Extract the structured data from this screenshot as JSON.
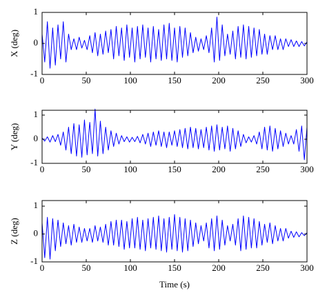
{
  "chart_data": [
    {
      "type": "line",
      "ylabel": "X (deg)",
      "x": [
        0,
        3,
        6,
        9,
        12,
        15,
        18,
        21,
        24,
        27,
        30,
        33,
        36,
        39,
        42,
        45,
        48,
        51,
        54,
        57,
        60,
        63,
        66,
        69,
        72,
        75,
        78,
        81,
        84,
        87,
        90,
        93,
        96,
        99,
        102,
        105,
        108,
        111,
        114,
        117,
        120,
        123,
        126,
        129,
        132,
        135,
        138,
        141,
        144,
        147,
        150,
        153,
        156,
        159,
        162,
        165,
        168,
        171,
        174,
        177,
        180,
        183,
        186,
        189,
        192,
        195,
        198,
        201,
        204,
        207,
        210,
        213,
        216,
        219,
        222,
        225,
        228,
        231,
        234,
        237,
        240,
        243,
        246,
        249,
        252,
        255,
        258,
        261,
        264,
        267,
        270,
        273,
        276,
        279,
        282,
        285,
        288,
        291,
        294,
        297,
        300
      ],
      "series": [
        {
          "name": "X",
          "color": "#0000ff",
          "values": [
            0.3,
            -0.6,
            0.7,
            -0.8,
            0.5,
            -0.7,
            0.6,
            -0.5,
            0.7,
            -0.6,
            0.3,
            -0.2,
            0.15,
            -0.2,
            0.2,
            -0.15,
            0.1,
            -0.2,
            0.25,
            -0.3,
            0.35,
            -0.4,
            0.3,
            -0.35,
            0.4,
            -0.3,
            0.45,
            -0.5,
            0.55,
            -0.4,
            0.5,
            -0.55,
            0.6,
            -0.45,
            0.5,
            -0.6,
            0.55,
            -0.5,
            0.6,
            -0.45,
            0.5,
            -0.6,
            0.55,
            -0.5,
            0.45,
            -0.55,
            0.6,
            -0.5,
            0.65,
            -0.55,
            0.5,
            -0.6,
            0.55,
            -0.45,
            0.5,
            -0.4,
            0.35,
            -0.3,
            0.2,
            -0.25,
            0.15,
            -0.2,
            0.25,
            -0.3,
            0.5,
            -0.6,
            0.85,
            -0.55,
            0.6,
            -0.4,
            0.3,
            -0.35,
            0.4,
            -0.5,
            0.55,
            -0.45,
            0.6,
            -0.5,
            0.55,
            -0.45,
            0.5,
            -0.4,
            0.45,
            -0.35,
            0.3,
            -0.35,
            0.25,
            -0.2,
            0.25,
            -0.2,
            0.15,
            -0.2,
            0.15,
            -0.1,
            0.12,
            -0.1,
            0.08,
            -0.1,
            0.06,
            -0.08,
            0.05
          ]
        }
      ],
      "xlim": [
        0,
        300
      ],
      "xticks": [
        0,
        50,
        100,
        150,
        200,
        250,
        300
      ],
      "ylim": [
        -1,
        1
      ],
      "yticks": [
        -1,
        0,
        1
      ]
    },
    {
      "type": "line",
      "ylabel": "Y (deg)",
      "x": [
        0,
        3,
        6,
        9,
        12,
        15,
        18,
        21,
        24,
        27,
        30,
        33,
        36,
        39,
        42,
        45,
        48,
        51,
        54,
        57,
        60,
        63,
        66,
        69,
        72,
        75,
        78,
        81,
        84,
        87,
        90,
        93,
        96,
        99,
        102,
        105,
        108,
        111,
        114,
        117,
        120,
        123,
        126,
        129,
        132,
        135,
        138,
        141,
        144,
        147,
        150,
        153,
        156,
        159,
        162,
        165,
        168,
        171,
        174,
        177,
        180,
        183,
        186,
        189,
        192,
        195,
        198,
        201,
        204,
        207,
        210,
        213,
        216,
        219,
        222,
        225,
        228,
        231,
        234,
        237,
        240,
        243,
        246,
        249,
        252,
        255,
        258,
        261,
        264,
        267,
        270,
        273,
        276,
        279,
        282,
        285,
        288,
        291,
        294,
        297,
        300
      ],
      "series": [
        {
          "name": "Y",
          "color": "#0000ff",
          "values": [
            0.05,
            -0.08,
            0.1,
            -0.12,
            0.15,
            -0.1,
            0.2,
            -0.25,
            0.3,
            -0.45,
            0.5,
            -0.6,
            0.65,
            -0.7,
            0.6,
            -0.75,
            0.8,
            -0.65,
            0.7,
            -0.6,
            1.25,
            -0.7,
            0.75,
            -0.6,
            0.5,
            -0.45,
            0.35,
            -0.3,
            0.25,
            -0.2,
            0.15,
            -0.1,
            0.1,
            -0.12,
            0.08,
            -0.1,
            0.12,
            -0.15,
            0.2,
            -0.2,
            0.25,
            -0.3,
            0.3,
            -0.25,
            0.35,
            -0.3,
            0.3,
            -0.35,
            0.3,
            -0.25,
            0.35,
            -0.3,
            0.4,
            -0.35,
            0.45,
            -0.4,
            0.5,
            -0.35,
            0.45,
            -0.4,
            0.4,
            -0.35,
            0.5,
            -0.45,
            0.55,
            -0.5,
            0.6,
            -0.45,
            0.5,
            -0.4,
            0.55,
            -0.5,
            0.45,
            -0.4,
            0.35,
            -0.3,
            0.2,
            -0.15,
            0.1,
            -0.12,
            0.15,
            -0.2,
            0.3,
            -0.4,
            0.5,
            -0.45,
            0.55,
            -0.5,
            0.45,
            -0.4,
            0.35,
            -0.3,
            0.25,
            -0.2,
            0.15,
            -0.2,
            0.4,
            -0.5,
            0.55,
            -0.85,
            0.5
          ]
        }
      ],
      "xlim": [
        0,
        300
      ],
      "xticks": [
        0,
        50,
        100,
        150,
        200,
        250,
        300
      ],
      "ylim": [
        -1,
        1.2
      ],
      "yticks": [
        -1,
        0,
        1
      ]
    },
    {
      "type": "line",
      "ylabel": "Z (deg)",
      "xlabel": "Time (s)",
      "x": [
        0,
        3,
        6,
        9,
        12,
        15,
        18,
        21,
        24,
        27,
        30,
        33,
        36,
        39,
        42,
        45,
        48,
        51,
        54,
        57,
        60,
        63,
        66,
        69,
        72,
        75,
        78,
        81,
        84,
        87,
        90,
        93,
        96,
        99,
        102,
        105,
        108,
        111,
        114,
        117,
        120,
        123,
        126,
        129,
        132,
        135,
        138,
        141,
        144,
        147,
        150,
        153,
        156,
        159,
        162,
        165,
        168,
        171,
        174,
        177,
        180,
        183,
        186,
        189,
        192,
        195,
        198,
        201,
        204,
        207,
        210,
        213,
        216,
        219,
        222,
        225,
        228,
        231,
        234,
        237,
        240,
        243,
        246,
        249,
        252,
        255,
        258,
        261,
        264,
        267,
        270,
        273,
        276,
        279,
        282,
        285,
        288,
        291,
        294,
        297,
        300
      ],
      "series": [
        {
          "name": "Z",
          "color": "#0000ff",
          "values": [
            0.4,
            -0.85,
            0.6,
            -0.9,
            0.55,
            -0.6,
            0.5,
            -0.45,
            0.4,
            -0.35,
            0.3,
            -0.4,
            0.35,
            -0.3,
            0.25,
            -0.3,
            0.2,
            -0.25,
            0.2,
            -0.3,
            0.3,
            -0.25,
            0.25,
            -0.3,
            0.35,
            -0.4,
            0.45,
            -0.4,
            0.5,
            -0.45,
            0.5,
            -0.55,
            0.45,
            -0.5,
            0.55,
            -0.5,
            0.6,
            -0.55,
            0.5,
            -0.6,
            0.55,
            -0.5,
            0.6,
            -0.55,
            0.65,
            -0.6,
            0.55,
            -0.65,
            0.6,
            -0.55,
            0.7,
            -0.6,
            0.6,
            -0.65,
            0.55,
            -0.6,
            0.5,
            -0.45,
            0.4,
            -0.35,
            0.3,
            -0.25,
            0.4,
            -0.5,
            0.55,
            -0.6,
            0.65,
            -0.55,
            0.5,
            -0.4,
            0.3,
            -0.25,
            0.35,
            -0.4,
            0.55,
            -0.6,
            0.65,
            -0.55,
            0.6,
            -0.5,
            0.55,
            -0.5,
            0.45,
            -0.4,
            0.35,
            -0.3,
            0.4,
            -0.35,
            0.3,
            -0.25,
            0.2,
            -0.25,
            0.2,
            -0.15,
            0.1,
            -0.12,
            0.08,
            -0.1,
            0.05,
            -0.06,
            0.05
          ]
        }
      ],
      "xlim": [
        0,
        300
      ],
      "xticks": [
        0,
        50,
        100,
        150,
        200,
        250,
        300
      ],
      "ylim": [
        -1,
        1.2
      ],
      "yticks": [
        -1,
        0,
        1
      ]
    }
  ]
}
